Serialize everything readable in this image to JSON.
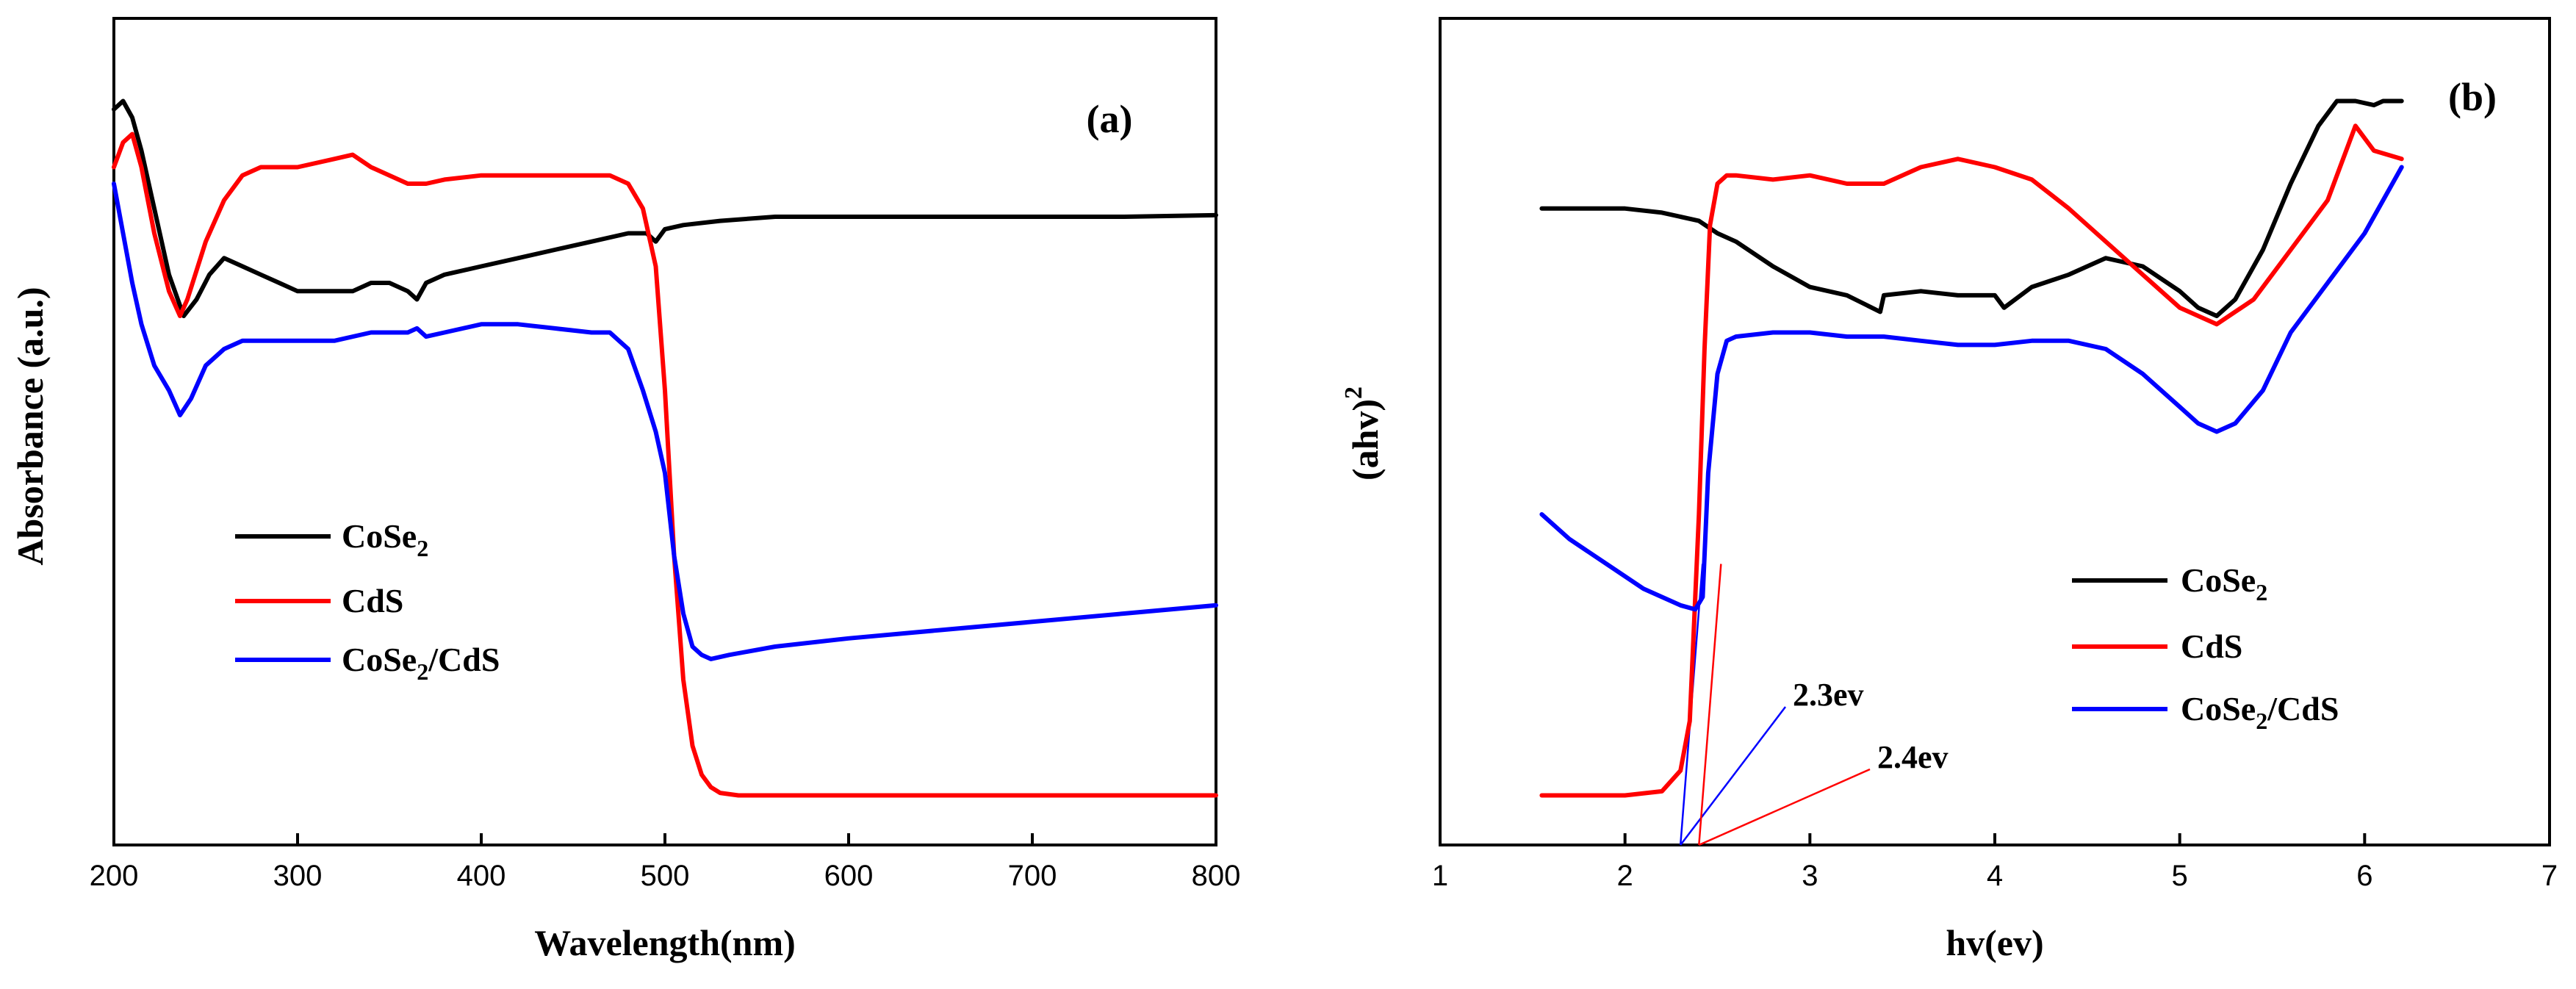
{
  "chart_data": [
    {
      "type": "line",
      "panel_label": "(a)",
      "xlabel": "Wavelength(nm)",
      "ylabel": "Absorbance (a.u.)",
      "xlim": [
        200,
        800
      ],
      "ylim": [
        0,
        1
      ],
      "xticks": [
        200,
        300,
        400,
        500,
        600,
        700,
        800
      ],
      "yticks_shown": false,
      "legend_position": "center-left",
      "series": [
        {
          "name": "CoSe2",
          "name_main": "CoSe",
          "name_sub": "2",
          "name_tail": "",
          "color": "#000000",
          "x": [
            200,
            205,
            210,
            215,
            222,
            230,
            238,
            245,
            252,
            260,
            270,
            280,
            290,
            300,
            310,
            320,
            330,
            340,
            350,
            360,
            365,
            370,
            380,
            400,
            420,
            440,
            460,
            480,
            490,
            495,
            500,
            510,
            530,
            560,
            600,
            650,
            700,
            750,
            800
          ],
          "y": [
            0.89,
            0.9,
            0.88,
            0.84,
            0.77,
            0.69,
            0.64,
            0.66,
            0.69,
            0.71,
            0.7,
            0.69,
            0.68,
            0.67,
            0.67,
            0.67,
            0.67,
            0.68,
            0.68,
            0.67,
            0.66,
            0.68,
            0.69,
            0.7,
            0.71,
            0.72,
            0.73,
            0.74,
            0.74,
            0.73,
            0.745,
            0.75,
            0.755,
            0.76,
            0.76,
            0.76,
            0.76,
            0.76,
            0.762
          ]
        },
        {
          "name": "CdS",
          "name_main": "CdS",
          "name_sub": "",
          "name_tail": "",
          "color": "#ff0000",
          "x": [
            200,
            205,
            210,
            215,
            222,
            230,
            236,
            240,
            250,
            260,
            270,
            280,
            290,
            300,
            320,
            330,
            340,
            350,
            360,
            370,
            380,
            400,
            420,
            440,
            460,
            470,
            480,
            488,
            495,
            500,
            505,
            510,
            515,
            520,
            525,
            530,
            540,
            560,
            600,
            650,
            700,
            800
          ],
          "y": [
            0.82,
            0.85,
            0.86,
            0.82,
            0.74,
            0.67,
            0.64,
            0.66,
            0.73,
            0.78,
            0.81,
            0.82,
            0.82,
            0.82,
            0.83,
            0.835,
            0.82,
            0.81,
            0.8,
            0.8,
            0.805,
            0.81,
            0.81,
            0.81,
            0.81,
            0.81,
            0.8,
            0.77,
            0.7,
            0.55,
            0.35,
            0.2,
            0.12,
            0.085,
            0.07,
            0.063,
            0.06,
            0.06,
            0.06,
            0.06,
            0.06,
            0.06
          ]
        },
        {
          "name": "CoSe2/CdS",
          "name_main": "CoSe",
          "name_sub": "2",
          "name_tail": "/CdS",
          "color": "#0000ff",
          "x": [
            200,
            205,
            210,
            215,
            222,
            230,
            236,
            242,
            250,
            260,
            270,
            280,
            300,
            320,
            340,
            360,
            365,
            370,
            380,
            400,
            420,
            440,
            460,
            470,
            480,
            488,
            495,
            500,
            505,
            510,
            515,
            520,
            525,
            535,
            560,
            600,
            650,
            700,
            750,
            800
          ],
          "y": [
            0.8,
            0.74,
            0.68,
            0.63,
            0.58,
            0.55,
            0.52,
            0.54,
            0.58,
            0.6,
            0.61,
            0.61,
            0.61,
            0.61,
            0.62,
            0.62,
            0.625,
            0.615,
            0.62,
            0.63,
            0.63,
            0.625,
            0.62,
            0.62,
            0.6,
            0.55,
            0.5,
            0.45,
            0.35,
            0.28,
            0.24,
            0.23,
            0.225,
            0.23,
            0.24,
            0.25,
            0.26,
            0.27,
            0.28,
            0.29
          ]
        }
      ]
    },
    {
      "type": "line",
      "panel_label": "(b)",
      "xlabel": "hv(ev)",
      "ylabel_main": "(ahv)",
      "ylabel_sup": "2",
      "xlim": [
        1,
        7
      ],
      "ylim": [
        0,
        1
      ],
      "xticks": [
        1,
        2,
        3,
        4,
        5,
        6,
        7
      ],
      "yticks_shown": false,
      "legend_position": "center-right",
      "series": [
        {
          "name": "CoSe2",
          "name_main": "CoSe",
          "name_sub": "2",
          "name_tail": "",
          "color": "#000000",
          "x": [
            1.55,
            1.8,
            2.0,
            2.2,
            2.4,
            2.5,
            2.6,
            2.8,
            3.0,
            3.2,
            3.38,
            3.4,
            3.6,
            3.8,
            4.0,
            4.05,
            4.2,
            4.4,
            4.6,
            4.8,
            5.0,
            5.1,
            5.2,
            5.3,
            5.45,
            5.6,
            5.75,
            5.85,
            5.95,
            6.05,
            6.1,
            6.2
          ],
          "y": [
            0.77,
            0.77,
            0.77,
            0.765,
            0.755,
            0.74,
            0.73,
            0.7,
            0.675,
            0.665,
            0.645,
            0.665,
            0.67,
            0.665,
            0.665,
            0.65,
            0.675,
            0.69,
            0.71,
            0.7,
            0.67,
            0.65,
            0.64,
            0.66,
            0.72,
            0.8,
            0.87,
            0.9,
            0.9,
            0.895,
            0.9,
            0.9
          ]
        },
        {
          "name": "CdS",
          "name_main": "CdS",
          "name_sub": "",
          "name_tail": "",
          "color": "#ff0000",
          "x": [
            1.55,
            1.8,
            2.0,
            2.2,
            2.3,
            2.35,
            2.4,
            2.43,
            2.46,
            2.5,
            2.55,
            2.6,
            2.8,
            3.0,
            3.2,
            3.4,
            3.6,
            3.8,
            4.0,
            4.2,
            4.4,
            4.6,
            4.8,
            5.0,
            5.2,
            5.4,
            5.6,
            5.8,
            5.95,
            6.05,
            6.2
          ],
          "y": [
            0.06,
            0.06,
            0.06,
            0.065,
            0.09,
            0.15,
            0.4,
            0.6,
            0.75,
            0.8,
            0.81,
            0.81,
            0.805,
            0.81,
            0.8,
            0.8,
            0.82,
            0.83,
            0.82,
            0.805,
            0.77,
            0.73,
            0.69,
            0.65,
            0.63,
            0.66,
            0.72,
            0.78,
            0.87,
            0.84,
            0.83
          ]
        },
        {
          "name": "CoSe2/CdS",
          "name_main": "CoSe",
          "name_sub": "2",
          "name_tail": "/CdS",
          "color": "#0000ff",
          "x": [
            1.55,
            1.7,
            1.9,
            2.1,
            2.3,
            2.38,
            2.42,
            2.45,
            2.5,
            2.55,
            2.6,
            2.8,
            3.0,
            3.2,
            3.4,
            3.6,
            3.8,
            4.0,
            4.2,
            4.4,
            4.6,
            4.8,
            5.0,
            5.1,
            5.2,
            5.3,
            5.45,
            5.6,
            5.8,
            6.0,
            6.1,
            6.2
          ],
          "y": [
            0.4,
            0.37,
            0.34,
            0.31,
            0.29,
            0.285,
            0.3,
            0.45,
            0.57,
            0.61,
            0.615,
            0.62,
            0.62,
            0.615,
            0.615,
            0.61,
            0.605,
            0.605,
            0.61,
            0.61,
            0.6,
            0.57,
            0.53,
            0.51,
            0.5,
            0.51,
            0.55,
            0.62,
            0.68,
            0.74,
            0.78,
            0.82
          ]
        }
      ],
      "annotations": [
        {
          "text": "2.3ev",
          "value": 2.3,
          "color": "#0000ff"
        },
        {
          "text": "2.4ev",
          "value": 2.4,
          "color": "#ff0000"
        }
      ]
    }
  ]
}
